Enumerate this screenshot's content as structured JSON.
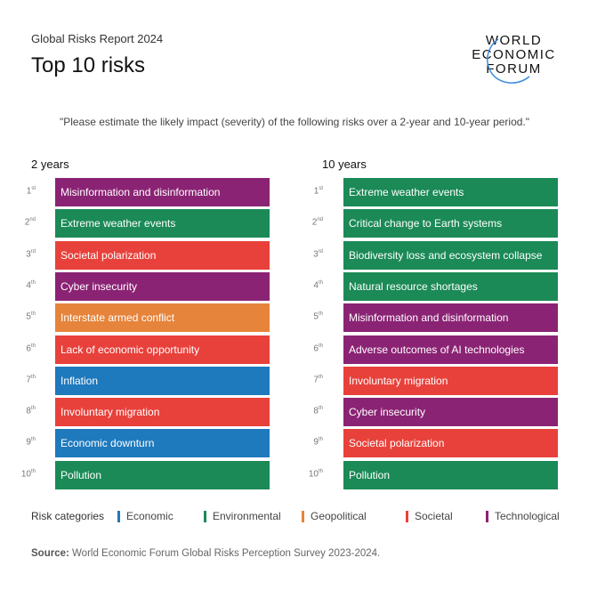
{
  "header": {
    "subtitle": "Global Risks Report 2024",
    "title": "Top 10 risks",
    "logo": "WORLD ECONOMIC FORUM"
  },
  "question": "\"Please estimate the likely impact (severity) of the following risks over a 2-year and 10-year period.\"",
  "colors": {
    "Economic": "#1f79bd",
    "Environmental": "#1b8a56",
    "Geopolitical": "#e6843b",
    "Societal": "#e8413b",
    "Technological": "#8b2374"
  },
  "chart_data": {
    "type": "table",
    "columns": [
      {
        "title": "2 years",
        "items": [
          {
            "rank": "1",
            "suffix": "st",
            "label": "Misinformation and disinformation",
            "category": "Technological"
          },
          {
            "rank": "2",
            "suffix": "nd",
            "label": "Extreme weather events",
            "category": "Environmental"
          },
          {
            "rank": "3",
            "suffix": "rd",
            "label": "Societal polarization",
            "category": "Societal"
          },
          {
            "rank": "4",
            "suffix": "th",
            "label": "Cyber insecurity",
            "category": "Technological"
          },
          {
            "rank": "5",
            "suffix": "th",
            "label": "Interstate armed conflict",
            "category": "Geopolitical"
          },
          {
            "rank": "6",
            "suffix": "th",
            "label": "Lack of economic opportunity",
            "category": "Societal"
          },
          {
            "rank": "7",
            "suffix": "th",
            "label": "Inflation",
            "category": "Economic"
          },
          {
            "rank": "8",
            "suffix": "th",
            "label": "Involuntary migration",
            "category": "Societal"
          },
          {
            "rank": "9",
            "suffix": "th",
            "label": "Economic downturn",
            "category": "Economic"
          },
          {
            "rank": "10",
            "suffix": "th",
            "label": "Pollution",
            "category": "Environmental"
          }
        ]
      },
      {
        "title": "10 years",
        "items": [
          {
            "rank": "1",
            "suffix": "st",
            "label": "Extreme weather events",
            "category": "Environmental"
          },
          {
            "rank": "2",
            "suffix": "nd",
            "label": "Critical change to Earth systems",
            "category": "Environmental"
          },
          {
            "rank": "3",
            "suffix": "rd",
            "label": "Biodiversity loss and ecosystem collapse",
            "category": "Environmental"
          },
          {
            "rank": "4",
            "suffix": "th",
            "label": "Natural resource shortages",
            "category": "Environmental"
          },
          {
            "rank": "5",
            "suffix": "th",
            "label": "Misinformation and disinformation",
            "category": "Technological"
          },
          {
            "rank": "6",
            "suffix": "th",
            "label": "Adverse outcomes of AI technologies",
            "category": "Technological"
          },
          {
            "rank": "7",
            "suffix": "th",
            "label": "Involuntary migration",
            "category": "Societal"
          },
          {
            "rank": "8",
            "suffix": "th",
            "label": "Cyber insecurity",
            "category": "Technological"
          },
          {
            "rank": "9",
            "suffix": "th",
            "label": "Societal polarization",
            "category": "Societal"
          },
          {
            "rank": "10",
            "suffix": "th",
            "label": "Pollution",
            "category": "Environmental"
          }
        ]
      }
    ]
  },
  "legend": {
    "title": "Risk categories",
    "items": [
      "Economic",
      "Environmental",
      "Geopolitical",
      "Societal",
      "Technological"
    ]
  },
  "source": {
    "label": "Source:",
    "text": " World Economic Forum Global Risks Perception Survey 2023-2024."
  }
}
